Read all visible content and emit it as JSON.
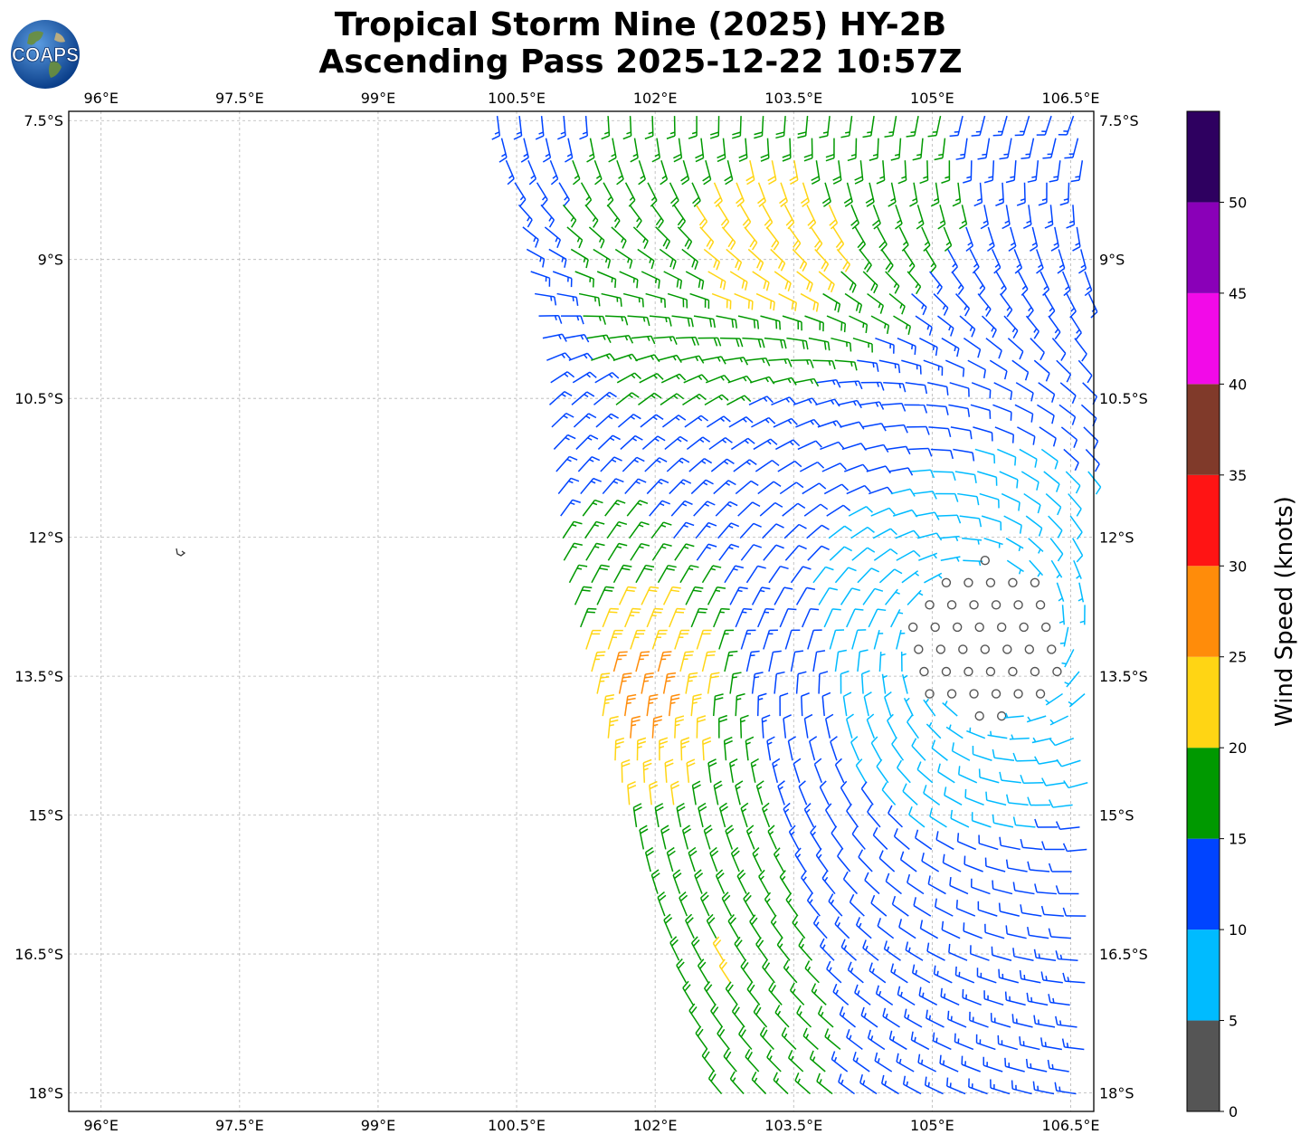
{
  "title": {
    "line1": "Tropical Storm Nine (2025) HY-2B",
    "line2": "Ascending Pass 2025-12-22 10:57Z"
  },
  "logo": {
    "text": "COAPS",
    "icon": "globe-icon"
  },
  "map": {
    "lon_range": [
      95.65,
      106.75
    ],
    "lat_range": [
      -18.2,
      -7.4
    ],
    "lon_ticks": [
      96,
      97.5,
      99,
      100.5,
      102,
      103.5,
      105,
      106.5
    ],
    "lon_tick_labels": [
      "96°E",
      "97.5°E",
      "99°E",
      "100.5°E",
      "102°E",
      "103.5°E",
      "105°E",
      "106.5°E"
    ],
    "lat_ticks": [
      -7.5,
      -9,
      -10.5,
      -12,
      -13.5,
      -15,
      -16.5,
      -18
    ],
    "lat_tick_labels": [
      "7.5°S",
      "9°S",
      "10.5°S",
      "12°S",
      "13.5°S",
      "15°S",
      "16.5°S",
      "18°S"
    ],
    "gridlines": true,
    "storm_center": {
      "lon": 105.6,
      "lat": -13.1
    }
  },
  "colorbar": {
    "title": "Wind Speed (knots)",
    "bounds": [
      0,
      5,
      10,
      15,
      20,
      25,
      30,
      35,
      40,
      45,
      50,
      55
    ],
    "colors": [
      "#555555",
      "#00bbff",
      "#0044ff",
      "#009900",
      "#ffd514",
      "#ff8c0a",
      "#ff1414",
      "#803a2a",
      "#f20ae8",
      "#8a00b8",
      "#2e0060"
    ],
    "tick_values": [
      0,
      5,
      10,
      15,
      20,
      25,
      30,
      35,
      40,
      45,
      50
    ],
    "tick_labels": [
      "0",
      "5",
      "10",
      "15",
      "20",
      "25",
      "30",
      "35",
      "40",
      "45",
      "50"
    ]
  }
}
